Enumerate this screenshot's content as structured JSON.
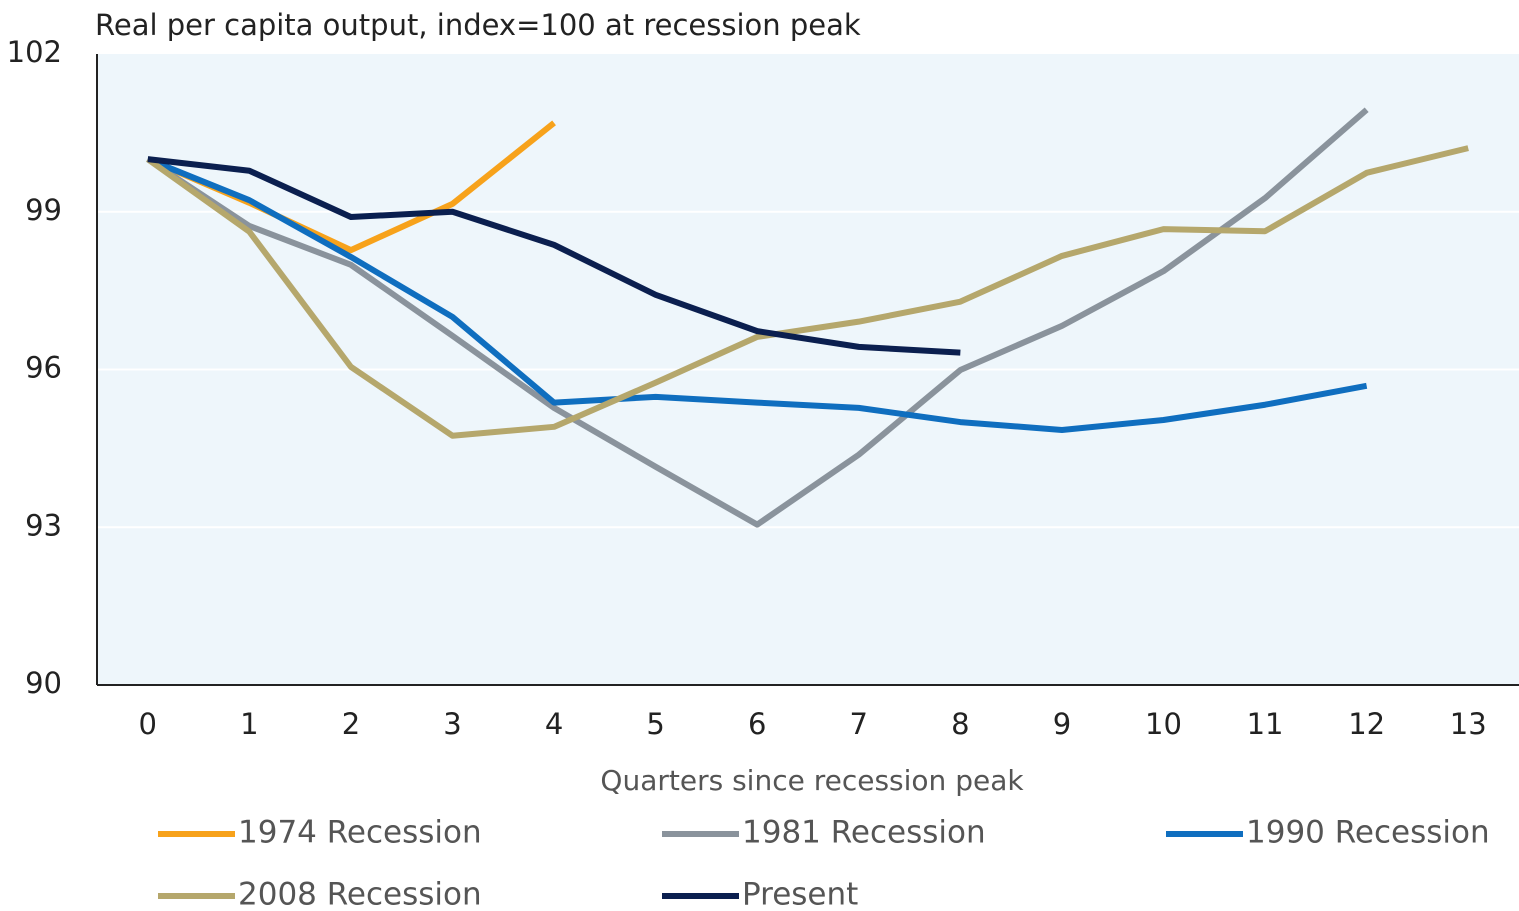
{
  "chart_data": {
    "type": "line",
    "title": "Real per capita output, index=100 at recession peak",
    "x_label": "Quarters since recession peak",
    "categories": [
      "0",
      "1",
      "2",
      "3",
      "4",
      "5",
      "6",
      "7",
      "8",
      "9",
      "10",
      "11",
      "12",
      "13"
    ],
    "ylim": [
      90,
      102
    ],
    "yticks": [
      90,
      93,
      96,
      99,
      102
    ],
    "grid": true,
    "series": [
      {
        "name": "1974 Recession",
        "color": "#f7a21b",
        "values": [
          100,
          99.17,
          98.27,
          99.15,
          100.69,
          null,
          null,
          null,
          null,
          null,
          null,
          null,
          null,
          null
        ]
      },
      {
        "name": "1981 Recession",
        "color": "#8a939c",
        "values": [
          100,
          98.73,
          97.99,
          96.64,
          95.27,
          94.15,
          93.05,
          94.38,
          95.99,
          96.83,
          97.87,
          99.26,
          100.94,
          null
        ]
      },
      {
        "name": "1990 Recession",
        "color": "#0f6ebf",
        "values": [
          100,
          99.22,
          98.14,
          97.0,
          95.37,
          95.48,
          95.37,
          95.27,
          95.0,
          94.85,
          95.04,
          95.33,
          95.69,
          null
        ]
      },
      {
        "name": "2008 Recession",
        "color": "#b5a76c",
        "values": [
          100,
          98.62,
          96.05,
          94.74,
          94.91,
          95.75,
          96.62,
          96.91,
          97.29,
          98.16,
          98.67,
          98.63,
          99.74,
          100.21
        ]
      },
      {
        "name": "Present",
        "color": "#0b1f4f",
        "values": [
          100,
          99.78,
          98.9,
          99.0,
          98.37,
          97.42,
          96.73,
          96.43,
          96.32,
          null,
          null,
          null,
          null,
          null
        ]
      }
    ]
  }
}
